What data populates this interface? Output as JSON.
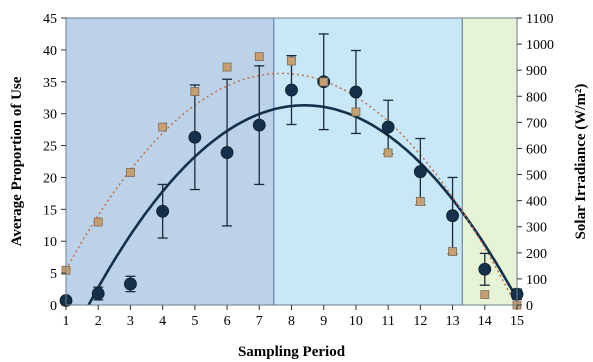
{
  "chart_data": {
    "type": "scatter",
    "xlabel": "Sampling Period",
    "ylabel": "Average Proportion of Use",
    "ylabel_right": "Solar Irradiance (W/m²)",
    "x_ticks": [
      "1",
      "2",
      "3",
      "4",
      "5",
      "6",
      "7",
      "8",
      "9",
      "10",
      "11",
      "12",
      "13",
      "14",
      "15"
    ],
    "y_ticks": [
      "0",
      "5",
      "10",
      "15",
      "20",
      "25",
      "30",
      "35",
      "40",
      "45"
    ],
    "y2_ticks": [
      "0",
      "100",
      "200",
      "300",
      "400",
      "500",
      "600",
      "700",
      "800",
      "900",
      "1000",
      "1100"
    ],
    "xlim": [
      1,
      15
    ],
    "ylim": [
      0,
      45
    ],
    "y2lim": [
      0,
      1100
    ],
    "regions": [
      {
        "from": 1,
        "to": 7.45,
        "color": "#bcd2e8"
      },
      {
        "from": 7.45,
        "to": 13.3,
        "color": "#c8e8f7"
      },
      {
        "from": 13.3,
        "to": 15,
        "color": "#e7f3d5"
      }
    ],
    "series": [
      {
        "axis": "left",
        "marker": "circle",
        "color": "#14304a",
        "x": [
          1,
          2,
          3,
          4,
          5,
          6,
          7,
          8,
          9,
          10,
          11,
          12,
          13,
          14,
          15
        ],
        "y": [
          0.7,
          1.8,
          3.3,
          14.7,
          26.3,
          23.9,
          28.2,
          33.7,
          35,
          33.4,
          27.9,
          20.9,
          14,
          5.6,
          1.7
        ],
        "error": [
          0,
          1,
          1.2,
          4.2,
          8.2,
          11.5,
          9.3,
          5.4,
          7.5,
          6.5,
          4.2,
          5.2,
          6,
          2.5,
          0.8
        ],
        "fit": {
          "type": "quadratic",
          "points": [
            [
              1.7,
              0
            ],
            [
              8.5,
              31.3
            ],
            [
              15.1,
              0
            ]
          ],
          "color": "#13304d"
        }
      },
      {
        "axis": "right",
        "marker": "square",
        "color": "#c8a070",
        "x": [
          1,
          2,
          3,
          4,
          5,
          6,
          7,
          8,
          9,
          10,
          11,
          12,
          13,
          14,
          15
        ],
        "y": [
          133,
          318,
          508,
          682,
          818,
          912,
          952,
          935,
          855,
          740,
          583,
          397,
          205,
          40,
          0
        ],
        "fit": {
          "type": "quadratic",
          "points": [
            [
              1,
              135
            ],
            [
              7.3,
              885
            ],
            [
              15,
              -10
            ]
          ],
          "color": "#c4704c",
          "style": "dotted"
        }
      }
    ]
  }
}
